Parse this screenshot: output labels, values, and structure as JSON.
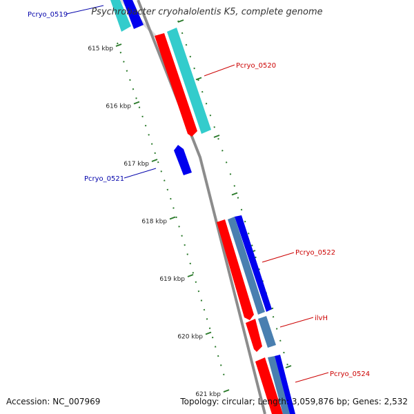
{
  "title": "Psychrobacter cryohalolentis K5, complete genome",
  "footer": {
    "accession": "Accession: NC_007969",
    "topology": "Topology: circular; Length: 3,059,876 bp; Genes: 2,532"
  },
  "ticks": [
    {
      "label": "615 kbp",
      "kbp": 615
    },
    {
      "label": "616 kbp",
      "kbp": 616
    },
    {
      "label": "617 kbp",
      "kbp": 617
    },
    {
      "label": "618 kbp",
      "kbp": 618
    },
    {
      "label": "619 kbp",
      "kbp": 619
    },
    {
      "label": "620 kbp",
      "kbp": 620
    },
    {
      "label": "621 kbp",
      "kbp": 621
    }
  ],
  "genes": [
    {
      "name": "Pcryo_0519",
      "label_color": "#0000aa"
    },
    {
      "name": "Pcryo_0520",
      "label_color": "#cc0000"
    },
    {
      "name": "Pcryo_0521",
      "label_color": "#0000aa"
    },
    {
      "name": "Pcryo_0522",
      "label_color": "#cc0000"
    },
    {
      "name": "ilvH",
      "label_color": "#cc0000"
    },
    {
      "name": "Pcryo_0524",
      "label_color": "#cc0000"
    }
  ],
  "colors": {
    "backbone": "#8c8c8c",
    "forward_cds": "#ff0000",
    "reverse_cds": "#0000ee",
    "forward_rna": "#33cccc",
    "reverse_rna": "#4a7fb0",
    "tick": "#2a7a2a"
  }
}
